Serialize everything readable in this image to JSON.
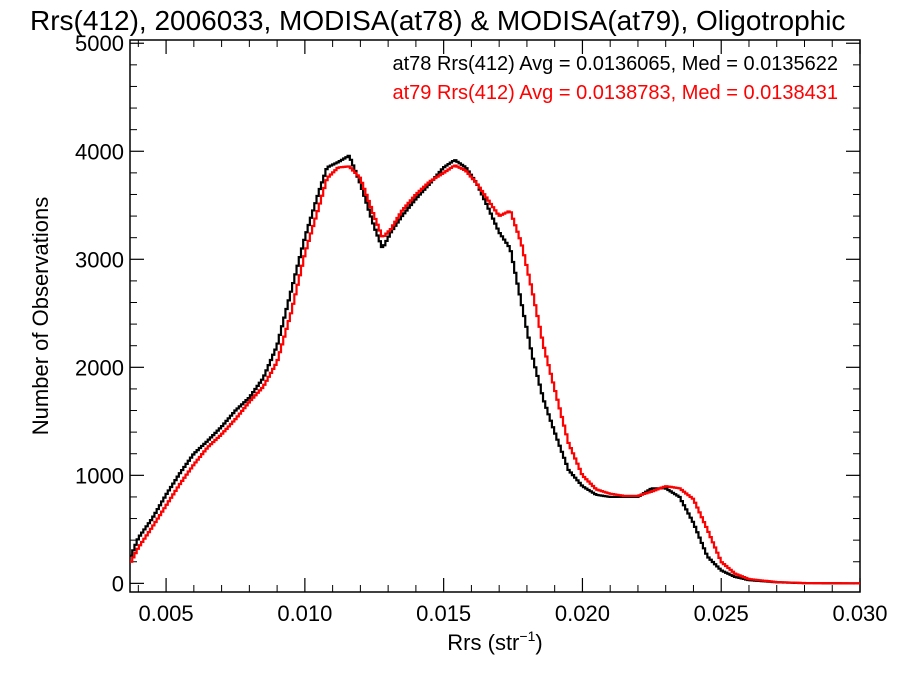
{
  "chart_data": {
    "type": "line",
    "title": "Rrs(412), 2006033, MODISA(at78) & MODISA(at79), Oligotrophic",
    "xlabel": "Rrs (str",
    "xlabel_sup": "−1",
    "xlabel_close": ")",
    "ylabel": "Number of Observations",
    "xlim": [
      0.0037,
      0.03
    ],
    "ylim": [
      -80,
      5030
    ],
    "xticks": [
      0.005,
      0.01,
      0.015,
      0.02,
      0.025,
      0.03
    ],
    "xtick_labels": [
      "0.005",
      "0.010",
      "0.015",
      "0.020",
      "0.025",
      "0.030"
    ],
    "yticks": [
      0,
      1000,
      2000,
      3000,
      4000,
      5000
    ],
    "ytick_labels": [
      "0",
      "1000",
      "2000",
      "3000",
      "4000",
      "5000"
    ],
    "grid": false,
    "legend_position": "top-right",
    "series": [
      {
        "name": "at78 Rrs(412) Avg = 0.0136065, Med = 0.0135622",
        "color": "#000000",
        "x": [
          0.0037,
          0.004,
          0.0045,
          0.005,
          0.0055,
          0.006,
          0.0065,
          0.007,
          0.0075,
          0.008,
          0.0085,
          0.009,
          0.0095,
          0.01,
          0.0105,
          0.0108,
          0.0112,
          0.0116,
          0.012,
          0.0125,
          0.0128,
          0.0131,
          0.0135,
          0.014,
          0.0145,
          0.015,
          0.0154,
          0.0158,
          0.0162,
          0.0166,
          0.017,
          0.0174,
          0.0178,
          0.0182,
          0.0186,
          0.019,
          0.0195,
          0.02,
          0.0205,
          0.021,
          0.0215,
          0.022,
          0.0225,
          0.023,
          0.0235,
          0.024,
          0.0245,
          0.025,
          0.0255,
          0.026,
          0.027,
          0.028,
          0.03
        ],
        "values": [
          230,
          420,
          600,
          820,
          1020,
          1200,
          1320,
          1450,
          1600,
          1720,
          1900,
          2200,
          2700,
          3200,
          3620,
          3850,
          3900,
          3960,
          3700,
          3300,
          3100,
          3250,
          3400,
          3560,
          3700,
          3850,
          3920,
          3850,
          3700,
          3480,
          3250,
          3100,
          2600,
          2100,
          1700,
          1400,
          1050,
          900,
          820,
          800,
          800,
          800,
          880,
          880,
          800,
          560,
          250,
          120,
          60,
          30,
          10,
          2,
          0
        ],
        "label_color": "#000000"
      },
      {
        "name": "at79 Rrs(412) Avg = 0.0138783, Med = 0.0138431",
        "color": "#ff0000",
        "x": [
          0.0037,
          0.004,
          0.0045,
          0.005,
          0.0055,
          0.006,
          0.0065,
          0.007,
          0.0075,
          0.008,
          0.0085,
          0.009,
          0.0095,
          0.01,
          0.0105,
          0.0108,
          0.0112,
          0.0116,
          0.012,
          0.0125,
          0.0128,
          0.0131,
          0.0135,
          0.014,
          0.0145,
          0.015,
          0.0154,
          0.0158,
          0.0162,
          0.0166,
          0.017,
          0.0174,
          0.0178,
          0.0182,
          0.0186,
          0.019,
          0.0195,
          0.02,
          0.0205,
          0.021,
          0.0215,
          0.022,
          0.0225,
          0.023,
          0.0235,
          0.024,
          0.0245,
          0.025,
          0.0255,
          0.026,
          0.027,
          0.028,
          0.03
        ],
        "values": [
          180,
          330,
          520,
          720,
          920,
          1100,
          1260,
          1380,
          1520,
          1680,
          1820,
          2050,
          2500,
          3050,
          3480,
          3750,
          3850,
          3860,
          3750,
          3400,
          3200,
          3280,
          3450,
          3600,
          3720,
          3800,
          3870,
          3820,
          3700,
          3550,
          3400,
          3450,
          3150,
          2700,
          2200,
          1800,
          1300,
          1000,
          870,
          830,
          810,
          810,
          850,
          900,
          880,
          780,
          500,
          200,
          90,
          40,
          12,
          3,
          0
        ],
        "label_color": "#ff0000"
      }
    ]
  }
}
